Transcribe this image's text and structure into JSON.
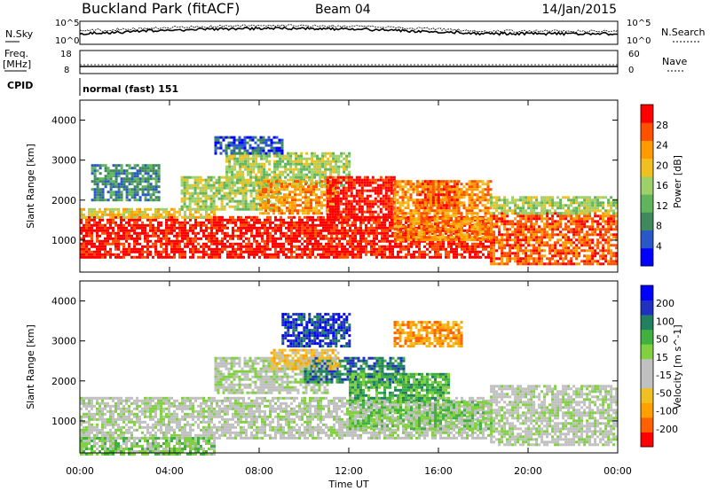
{
  "header": {
    "station": "Buckland Park (fitACF)",
    "beam": "Beam 04",
    "date": "14/Jan/2015"
  },
  "summary_panels": {
    "nsky_label": "N.Sky",
    "nsearch_label": "N.Search",
    "noise_ticks": [
      "10^5",
      "10^0"
    ],
    "freq_label_1": "Freq.",
    "freq_label_2": "[MHz]",
    "freq_ticks": [
      "18",
      "8"
    ],
    "nave_label": "Nave",
    "nave_ticks": [
      "60",
      "0"
    ],
    "cpid_label": "CPID",
    "cpid_value": "normal (fast) 151"
  },
  "chart_data": [
    {
      "type": "heatmap",
      "panel": "power",
      "ylabel": "Slant Range [km]",
      "xlabel": "Time UT",
      "x_ticks": [
        "00:00",
        "04:00",
        "08:00",
        "12:00",
        "16:00",
        "20:00",
        "00:00"
      ],
      "x_range_hours": [
        0,
        24
      ],
      "y_ticks": [
        1000,
        2000,
        3000,
        4000
      ],
      "ylim": [
        200,
        4500
      ],
      "colorbar_label": "Power [dB]",
      "colorbar_ticks": [
        "28",
        "24",
        "20",
        "16",
        "12",
        "8",
        "4"
      ],
      "colorbar_colors": [
        "#0000ff",
        "#2a58c8",
        "#3f8a5c",
        "#5fb45c",
        "#9ed06a",
        "#f0c020",
        "#ff9a00",
        "#ff5000",
        "#ff0000"
      ],
      "regions": [
        {
          "t": [
            0.0,
            18.3
          ],
          "r": [
            600,
            1600
          ],
          "level": 8
        },
        {
          "t": [
            0.0,
            6.0
          ],
          "r": [
            1600,
            1800
          ],
          "level": 5
        },
        {
          "t": [
            4.5,
            9.0
          ],
          "r": [
            1800,
            2600
          ],
          "level": 4
        },
        {
          "t": [
            6.5,
            12.0
          ],
          "r": [
            2400,
            3200
          ],
          "level": 4
        },
        {
          "t": [
            8.0,
            11.5
          ],
          "r": [
            1700,
            2500
          ],
          "level": 6
        },
        {
          "t": [
            11.0,
            14.0
          ],
          "r": [
            1500,
            2600
          ],
          "level": 8
        },
        {
          "t": [
            14.0,
            18.3
          ],
          "r": [
            1000,
            2500
          ],
          "level": 6
        },
        {
          "t": [
            15.0,
            16.8
          ],
          "r": [
            1800,
            2500
          ],
          "level": 7
        },
        {
          "t": [
            18.3,
            24.0
          ],
          "r": [
            400,
            1700
          ],
          "level": 7
        },
        {
          "t": [
            18.3,
            24.0
          ],
          "r": [
            1700,
            2100
          ],
          "level": 4
        },
        {
          "t": [
            0.5,
            3.5
          ],
          "r": [
            2000,
            2900
          ],
          "level": 2
        },
        {
          "t": [
            6.0,
            9.0
          ],
          "r": [
            3200,
            3600
          ],
          "level": 1
        }
      ]
    },
    {
      "type": "heatmap",
      "panel": "velocity",
      "ylabel": "Slant Range [km]",
      "xlabel": "Time UT",
      "x_ticks": [
        "00:00",
        "04:00",
        "08:00",
        "12:00",
        "16:00",
        "20:00",
        "00:00"
      ],
      "x_range_hours": [
        0,
        24
      ],
      "y_ticks": [
        1000,
        2000,
        3000,
        4000
      ],
      "ylim": [
        200,
        4500
      ],
      "colorbar_label": "Velocity [m s^-1]",
      "colorbar_ticks": [
        "200",
        "100",
        "50",
        "15",
        "-15",
        "-50",
        "-100",
        "-200"
      ],
      "colorbar_colors": [
        "#ff0000",
        "#ff6000",
        "#ffa000",
        "#f0c020",
        "#c0c0c0",
        "#c0c0c0",
        "#80d040",
        "#40b040",
        "#208060",
        "#2030c0",
        "#0000ff"
      ],
      "regions": [
        {
          "t": [
            0.0,
            18.3
          ],
          "r": [
            600,
            1600
          ],
          "level": 5
        },
        {
          "t": [
            0.0,
            6.0
          ],
          "r": [
            200,
            600
          ],
          "level": 6
        },
        {
          "t": [
            6.0,
            11.0
          ],
          "r": [
            1700,
            2600
          ],
          "level": 5
        },
        {
          "t": [
            9.0,
            12.0
          ],
          "r": [
            2900,
            3700
          ],
          "level": 9
        },
        {
          "t": [
            10.0,
            14.5
          ],
          "r": [
            2000,
            2600
          ],
          "level": 8
        },
        {
          "t": [
            12.0,
            16.5
          ],
          "r": [
            1500,
            2200
          ],
          "level": 7
        },
        {
          "t": [
            14.0,
            17.0
          ],
          "r": [
            2900,
            3500
          ],
          "level": 2
        },
        {
          "t": [
            8.5,
            11.5
          ],
          "r": [
            2300,
            2800
          ],
          "level": 3
        },
        {
          "t": [
            18.3,
            24.0
          ],
          "r": [
            400,
            1900
          ],
          "level": 5
        },
        {
          "t": [
            12.0,
            18.3
          ],
          "r": [
            800,
            1500
          ],
          "level": 6
        }
      ]
    }
  ]
}
